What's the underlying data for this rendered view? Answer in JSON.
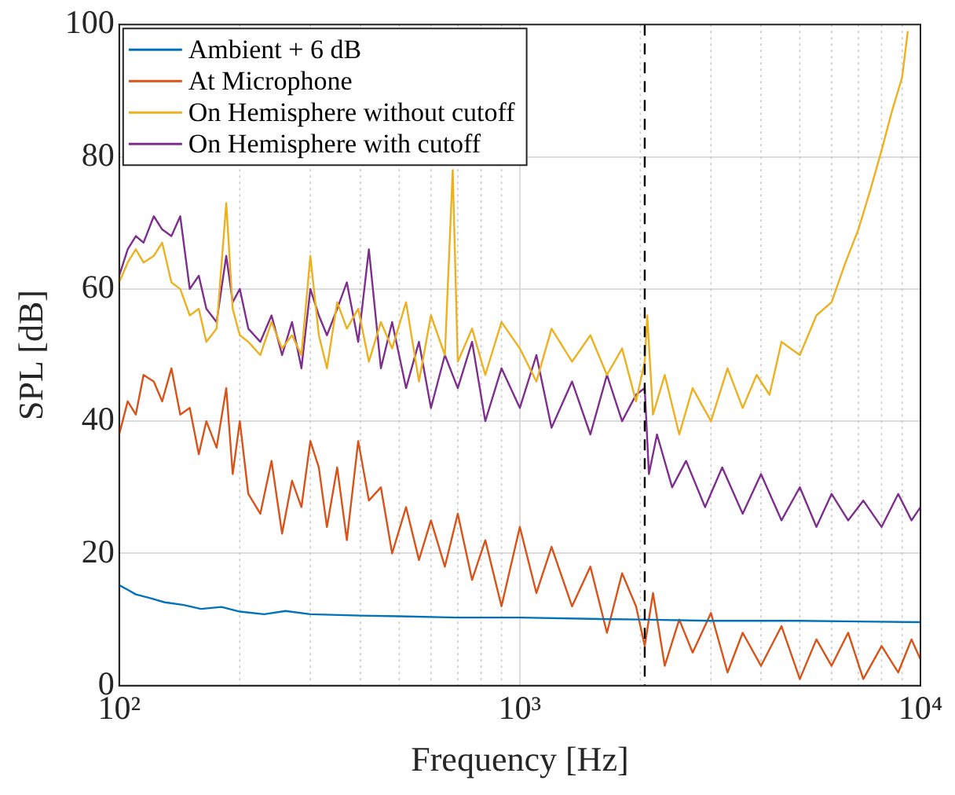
{
  "chart_data": {
    "type": "line",
    "xlabel": "Frequency [Hz]",
    "ylabel": "SPL [dB]",
    "log": "x",
    "xlim": [
      100,
      10000
    ],
    "ylim": [
      0,
      100
    ],
    "xticks": [
      {
        "value": 100,
        "label": "10²"
      },
      {
        "value": 200,
        "label": null
      },
      {
        "value": 300,
        "label": null
      },
      {
        "value": 400,
        "label": null
      },
      {
        "value": 500,
        "label": null
      },
      {
        "value": 600,
        "label": null
      },
      {
        "value": 700,
        "label": null
      },
      {
        "value": 800,
        "label": null
      },
      {
        "value": 900,
        "label": null
      },
      {
        "value": 1000,
        "label": "10³"
      },
      {
        "value": 2000,
        "label": null
      },
      {
        "value": 3000,
        "label": null
      },
      {
        "value": 4000,
        "label": null
      },
      {
        "value": 5000,
        "label": null
      },
      {
        "value": 6000,
        "label": null
      },
      {
        "value": 7000,
        "label": null
      },
      {
        "value": 8000,
        "label": null
      },
      {
        "value": 9000,
        "label": null
      },
      {
        "value": 10000,
        "label": "10⁴"
      }
    ],
    "yticks": [
      0,
      20,
      40,
      60,
      80,
      100
    ],
    "grid": true,
    "legend": "top left",
    "marker": "none",
    "line_style": "solid",
    "ref_lines": [
      {
        "axis": "x",
        "value": 2050,
        "label": null,
        "color": "#000000",
        "line_style": "dashed"
      }
    ],
    "series": [
      {
        "name": "Ambient + 6 dB",
        "color": "#0072bd",
        "x": [
          100,
          105,
          110,
          120,
          130,
          145,
          160,
          180,
          200,
          230,
          260,
          300,
          400,
          500,
          700,
          1000,
          1500,
          2000,
          3000,
          5000,
          7000,
          10000
        ],
        "values": [
          15.2,
          14.5,
          13.8,
          13.2,
          12.6,
          12.2,
          11.6,
          11.9,
          11.2,
          10.8,
          11.3,
          10.8,
          10.6,
          10.5,
          10.3,
          10.3,
          10.1,
          10,
          9.8,
          9.8,
          9.7,
          9.6
        ]
      },
      {
        "name": "At Microphone",
        "color": "#d95319",
        "x": [
          100,
          105,
          110,
          115,
          122,
          128,
          135,
          142,
          150,
          158,
          165,
          175,
          185,
          192,
          200,
          210,
          225,
          240,
          255,
          270,
          285,
          300,
          315,
          330,
          350,
          370,
          395,
          420,
          450,
          480,
          520,
          560,
          600,
          650,
          700,
          760,
          820,
          900,
          1000,
          1100,
          1200,
          1350,
          1500,
          1650,
          1800,
          1950,
          2050,
          2150,
          2300,
          2500,
          2700,
          3000,
          3300,
          3600,
          4000,
          4500,
          5000,
          5500,
          6000,
          6600,
          7200,
          8000,
          8800,
          9500,
          10000
        ],
        "values": [
          38,
          43,
          41,
          47,
          46,
          43,
          48,
          41,
          42,
          35,
          40,
          36,
          45,
          32,
          40,
          29,
          26,
          34,
          23,
          31,
          27,
          37,
          33,
          24,
          33,
          22,
          37,
          28,
          30,
          20,
          27,
          19,
          25,
          18,
          26,
          16,
          22,
          12,
          24,
          14,
          21,
          12,
          18,
          8,
          17,
          12,
          6,
          14,
          3,
          10,
          5,
          11,
          2,
          8,
          3,
          9,
          1,
          7,
          3,
          8,
          1,
          6,
          2,
          7,
          4
        ]
      },
      {
        "name": "On Hemisphere without cutoff",
        "color": "#edb120",
        "x": [
          100,
          105,
          110,
          115,
          122,
          128,
          135,
          142,
          150,
          158,
          165,
          175,
          185,
          192,
          200,
          210,
          225,
          240,
          255,
          270,
          285,
          300,
          315,
          330,
          350,
          370,
          395,
          420,
          450,
          480,
          520,
          560,
          600,
          650,
          680,
          700,
          760,
          820,
          900,
          1000,
          1100,
          1200,
          1350,
          1500,
          1650,
          1800,
          1950,
          2050,
          2080,
          2150,
          2300,
          2500,
          2700,
          3000,
          3300,
          3600,
          3900,
          4200,
          4500,
          5000,
          5500,
          6000,
          6500,
          7000,
          7500,
          8000,
          8500,
          9000,
          9300
        ],
        "values": [
          61,
          64,
          66,
          64,
          65,
          67,
          61,
          60,
          56,
          57,
          52,
          54,
          73,
          57,
          53,
          52,
          50,
          55,
          51,
          53,
          50,
          65,
          53,
          48,
          58,
          54,
          57,
          49,
          55,
          51,
          58,
          46,
          56,
          50,
          78,
          49,
          54,
          47,
          55,
          51,
          46,
          54,
          49,
          53,
          47,
          51,
          43,
          49,
          56,
          41,
          47,
          38,
          45,
          40,
          48,
          42,
          47,
          44,
          52,
          50,
          56,
          58,
          64,
          69,
          75,
          81,
          87,
          92,
          99
        ]
      },
      {
        "name": "On Hemisphere with cutoff",
        "color": "#7e2f8e",
        "x": [
          100,
          105,
          110,
          115,
          122,
          128,
          135,
          142,
          150,
          158,
          165,
          175,
          185,
          192,
          200,
          210,
          225,
          240,
          255,
          270,
          285,
          300,
          315,
          330,
          350,
          370,
          395,
          420,
          450,
          480,
          520,
          560,
          600,
          650,
          700,
          760,
          820,
          900,
          1000,
          1100,
          1200,
          1350,
          1500,
          1650,
          1800,
          1950,
          2050,
          2100,
          2200,
          2400,
          2600,
          2900,
          3200,
          3600,
          4000,
          4500,
          5000,
          5500,
          6000,
          6600,
          7200,
          8000,
          8800,
          9500,
          10000
        ],
        "values": [
          62,
          66,
          68,
          67,
          71,
          69,
          68,
          71,
          60,
          62,
          57,
          55,
          65,
          58,
          60,
          54,
          52,
          56,
          50,
          55,
          48,
          60,
          56,
          53,
          57,
          61,
          52,
          66,
          48,
          55,
          45,
          52,
          42,
          50,
          45,
          52,
          40,
          48,
          42,
          50,
          39,
          46,
          38,
          47,
          40,
          44,
          45,
          32,
          38,
          30,
          34,
          27,
          33,
          26,
          32,
          25,
          30,
          24,
          29,
          25,
          28,
          24,
          29,
          25,
          27
        ]
      }
    ]
  }
}
